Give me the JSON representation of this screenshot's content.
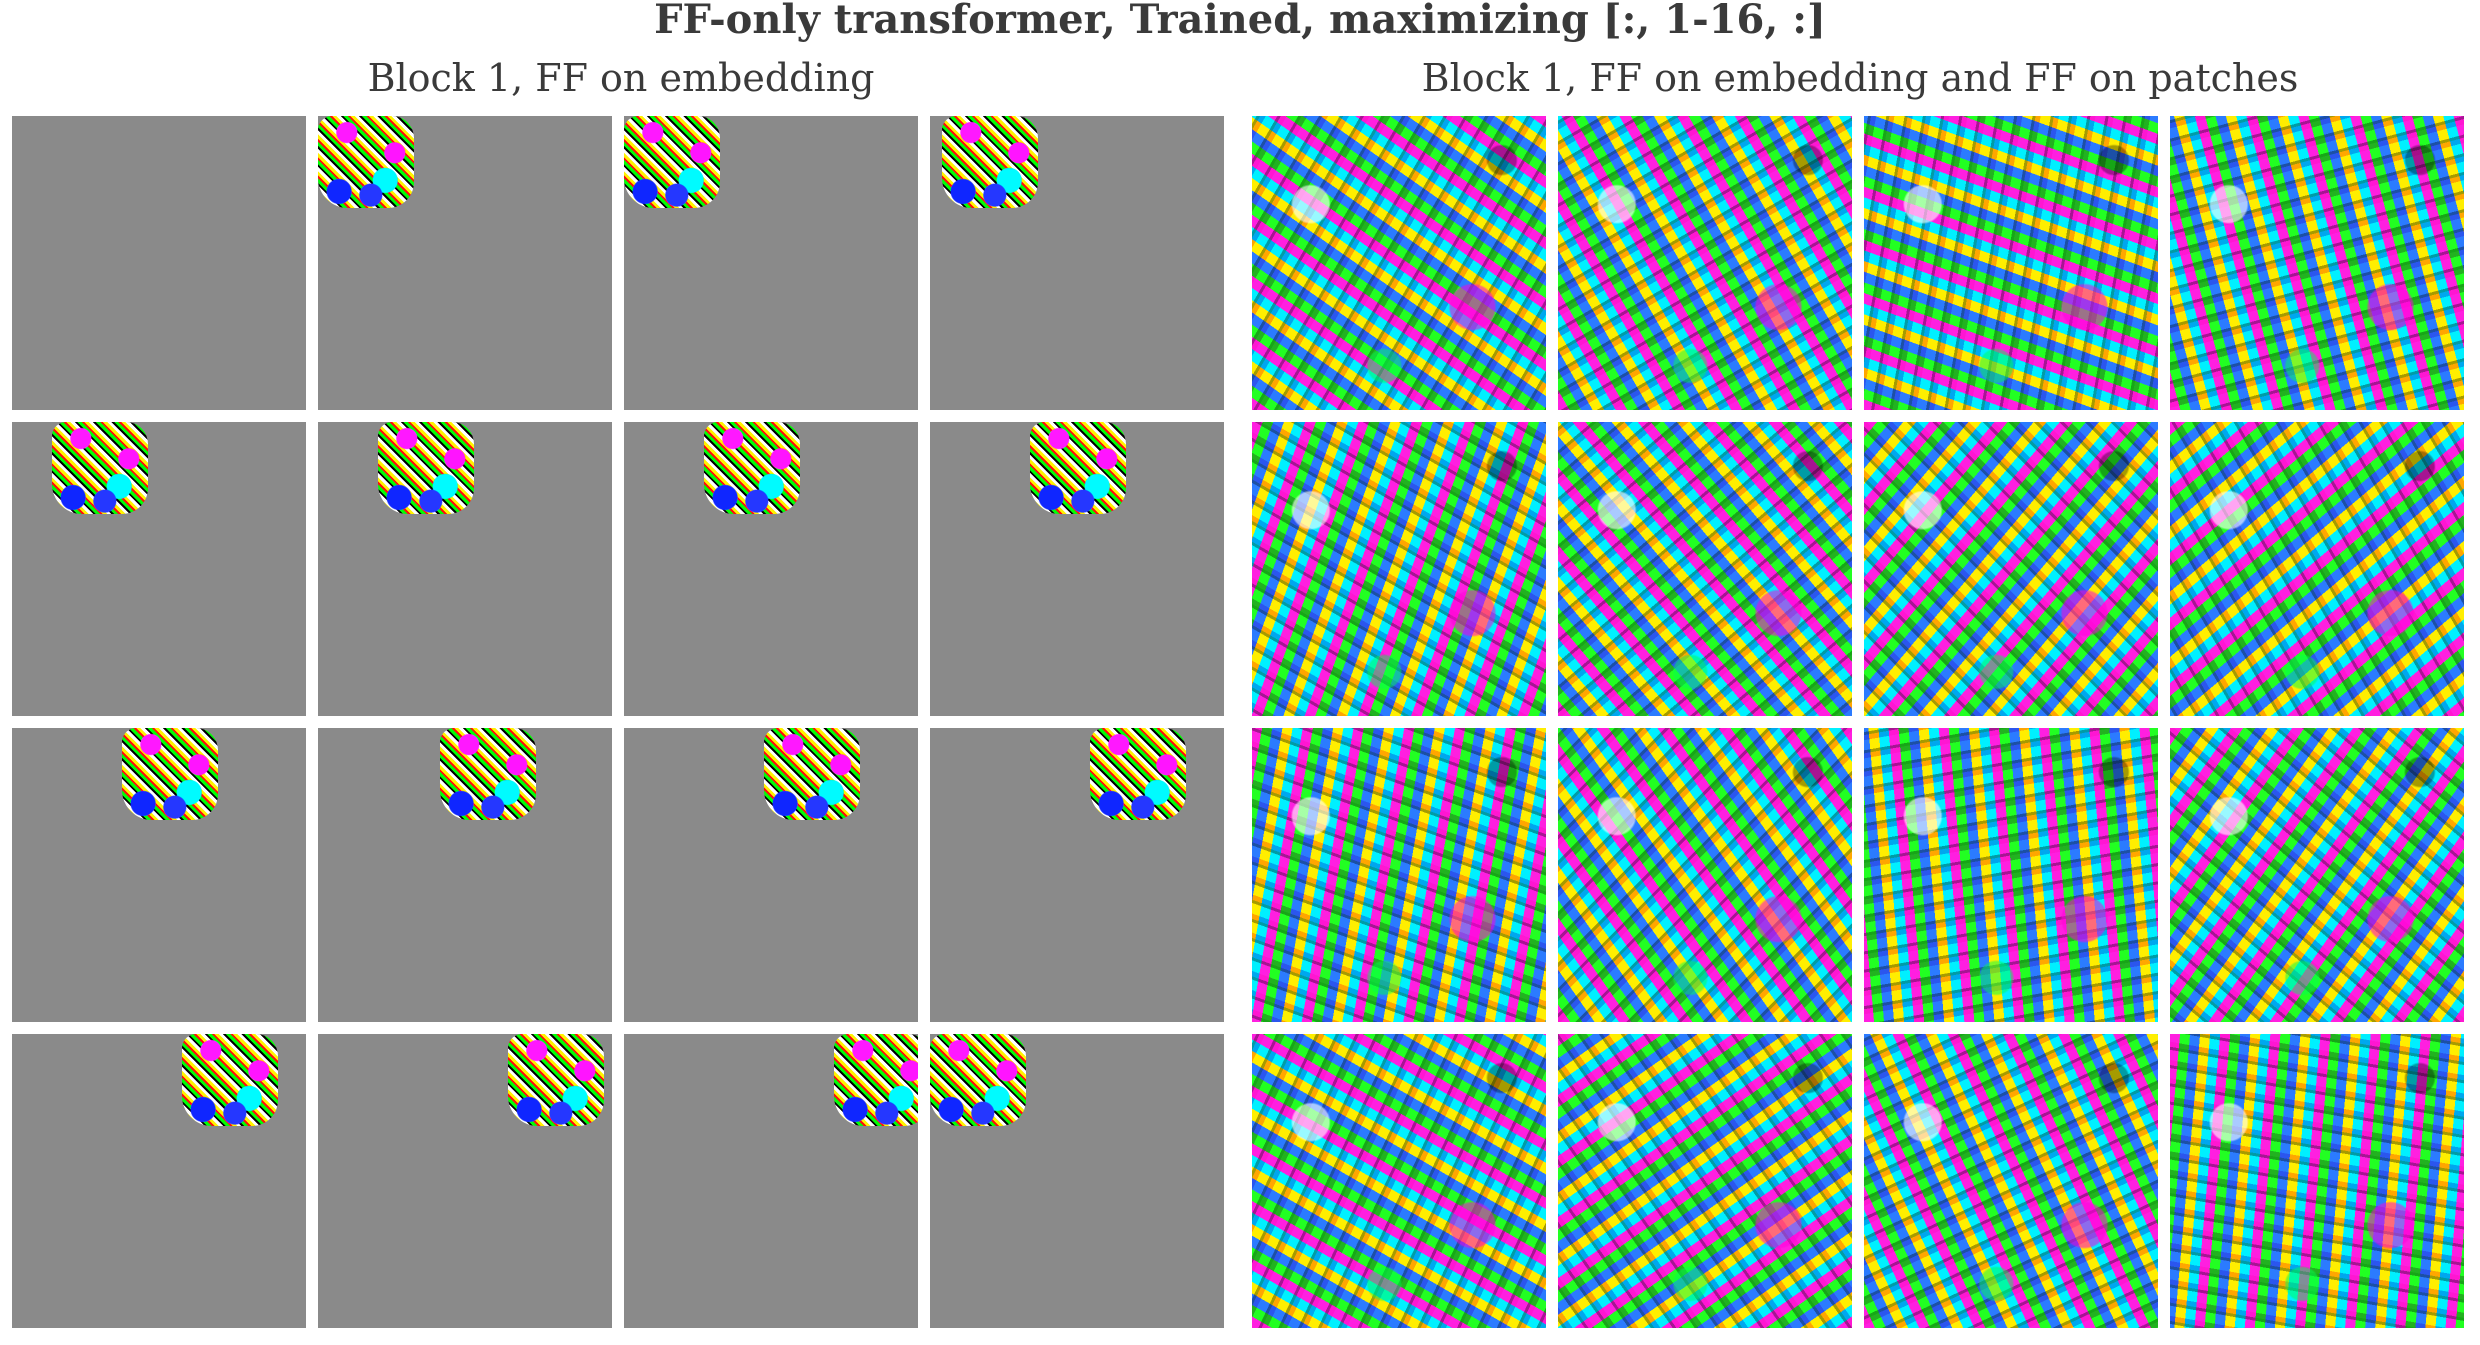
{
  "figure": {
    "title": "FF-only transformer, Trained, maximizing [:, 1-16, :]"
  },
  "panels": [
    {
      "title": "Block 1, FF on embedding",
      "tile_count": 16,
      "style": "gray-background-with-localized-colorful-patch",
      "background_color": "#8a8a8a"
    },
    {
      "title": "Block 1, FF on embedding and FF on patches",
      "tile_count": 16,
      "style": "full-psychedelic-texture"
    }
  ]
}
